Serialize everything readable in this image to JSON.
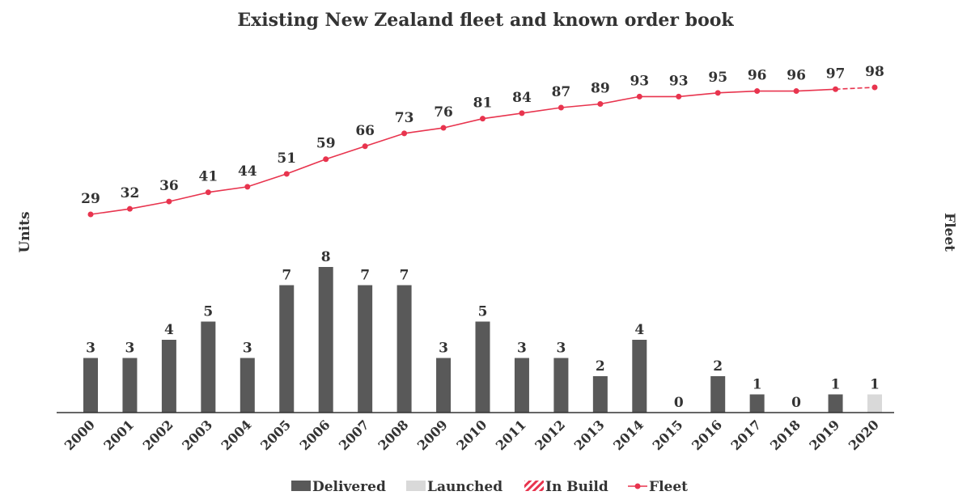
{
  "chart_data": {
    "type": "bar",
    "title": "Existing New Zealand fleet and known order book",
    "ylabel_left": "Units",
    "ylabel_right": "Fleet",
    "categories": [
      "2000",
      "2001",
      "2002",
      "2003",
      "2004",
      "2005",
      "2006",
      "2007",
      "2008",
      "2009",
      "2010",
      "2011",
      "2012",
      "2013",
      "2014",
      "2015",
      "2016",
      "2017",
      "2018",
      "2019",
      "2020"
    ],
    "series": [
      {
        "name": "Delivered",
        "type": "bar",
        "color": "#595959",
        "values": [
          3,
          3,
          4,
          5,
          3,
          7,
          8,
          7,
          7,
          3,
          5,
          3,
          3,
          2,
          4,
          0,
          2,
          1,
          0,
          1,
          null
        ]
      },
      {
        "name": "Launched",
        "type": "bar",
        "color": "#d9d9d9",
        "values": [
          null,
          null,
          null,
          null,
          null,
          null,
          null,
          null,
          null,
          null,
          null,
          null,
          null,
          null,
          null,
          null,
          null,
          null,
          null,
          null,
          1
        ]
      },
      {
        "name": "In Build",
        "type": "bar",
        "color": "#e8344e",
        "pattern": "diagonal-stripes",
        "values": [
          null,
          null,
          null,
          null,
          null,
          null,
          null,
          null,
          null,
          null,
          null,
          null,
          null,
          null,
          null,
          null,
          null,
          null,
          null,
          null,
          null
        ]
      },
      {
        "name": "Fleet",
        "type": "line",
        "color": "#e8344e",
        "axis": "right",
        "values": [
          29,
          32,
          36,
          41,
          44,
          51,
          59,
          66,
          73,
          76,
          81,
          84,
          87,
          89,
          93,
          93,
          95,
          96,
          96,
          97,
          98
        ]
      }
    ],
    "bar_labels": [
      "3",
      "3",
      "4",
      "5",
      "3",
      "7",
      "8",
      "7",
      "7",
      "3",
      "5",
      "3",
      "3",
      "2",
      "4",
      "0",
      "2",
      "1",
      "0",
      "1",
      "1"
    ],
    "legend_position": "bottom",
    "grid": false,
    "ylim_units": [
      0,
      8
    ],
    "ylim_fleet": [
      29,
      98
    ]
  },
  "legend": [
    {
      "label": "Delivered",
      "kind": "bar-solid",
      "color": "#595959"
    },
    {
      "label": "Launched",
      "kind": "bar-solid",
      "color": "#d9d9d9"
    },
    {
      "label": "In Build",
      "kind": "bar-striped",
      "color": "#e8344e"
    },
    {
      "label": "Fleet",
      "kind": "line-marker",
      "color": "#e8344e"
    }
  ]
}
